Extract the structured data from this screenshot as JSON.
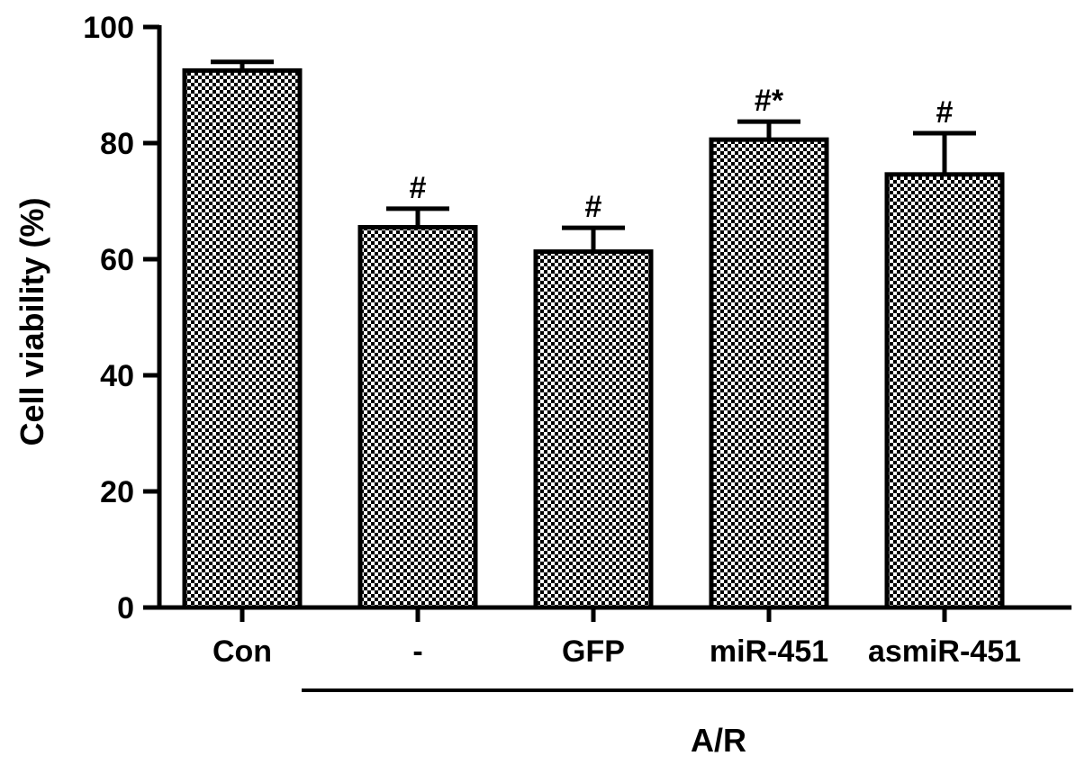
{
  "chart_data": {
    "type": "bar",
    "title": "",
    "xlabel": "",
    "ylabel": "Cell viability (%)",
    "ylim": [
      0,
      100
    ],
    "yticks": [
      0,
      20,
      40,
      60,
      80,
      100
    ],
    "grid": false,
    "legend": "none",
    "categories": [
      "Con",
      "-",
      "GFP",
      "miR-451",
      "asmiR-451"
    ],
    "values": [
      92.5,
      65.5,
      61.3,
      80.6,
      74.6
    ],
    "errors": [
      1.5,
      3.2,
      4.1,
      3.1,
      7.1
    ],
    "annotations": [
      "",
      "#",
      "#",
      "#*",
      "#"
    ],
    "group": {
      "label": "A/R",
      "categories": [
        "-",
        "GFP",
        "miR-451",
        "asmiR-451"
      ]
    },
    "bar_fill": "#000000",
    "bar_pattern": "checkerboard"
  }
}
